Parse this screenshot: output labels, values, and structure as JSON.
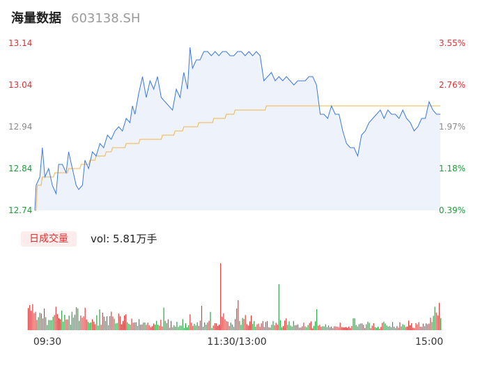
{
  "header": {
    "name": "海量数据",
    "code": "603138.SH"
  },
  "volume_panel": {
    "badge": "日成交量",
    "vol_text": "vol: 5.81万手"
  },
  "colors": {
    "up": "#e03131",
    "down": "#1f9d3a",
    "price_line": "#3b7ae0",
    "avg_line": "#f0b44a",
    "area_fill": "#eef2fb"
  },
  "chart_data": [
    {
      "type": "line",
      "y_left_ticks": [
        "13.14",
        "13.04",
        "12.94",
        "12.84",
        "12.74"
      ],
      "y_right_ticks": [
        "3.55%",
        "2.76%",
        "1.97%",
        "1.18%",
        "0.39%"
      ],
      "x_ticks": [
        "09:30",
        "11:30/13:00",
        "15:00"
      ],
      "ylim": [
        12.74,
        13.14
      ],
      "price_keypoints": [
        [
          0,
          12.74
        ],
        [
          1,
          12.8
        ],
        [
          4,
          12.82
        ],
        [
          6,
          12.89
        ],
        [
          8,
          12.82
        ],
        [
          11,
          12.84
        ],
        [
          14,
          12.8
        ],
        [
          17,
          12.78
        ],
        [
          19,
          12.85
        ],
        [
          22,
          12.85
        ],
        [
          25,
          12.83
        ],
        [
          27,
          12.88
        ],
        [
          30,
          12.84
        ],
        [
          33,
          12.8
        ],
        [
          35,
          12.79
        ],
        [
          38,
          12.8
        ],
        [
          40,
          12.86
        ],
        [
          43,
          12.84
        ],
        [
          46,
          12.88
        ],
        [
          49,
          12.87
        ],
        [
          52,
          12.9
        ],
        [
          55,
          12.89
        ],
        [
          58,
          12.92
        ],
        [
          61,
          12.91
        ],
        [
          64,
          12.93
        ],
        [
          67,
          12.94
        ],
        [
          70,
          12.93
        ],
        [
          73,
          12.96
        ],
        [
          76,
          12.95
        ],
        [
          78,
          12.99
        ],
        [
          80,
          12.97
        ],
        [
          83,
          13.02
        ],
        [
          86,
          13.06
        ],
        [
          89,
          13.01
        ],
        [
          92,
          13.05
        ],
        [
          95,
          13.03
        ],
        [
          98,
          13.06
        ],
        [
          101,
          13.01
        ],
        [
          104,
          13.0
        ],
        [
          107,
          12.99
        ],
        [
          110,
          12.98
        ],
        [
          113,
          13.03
        ],
        [
          116,
          13.01
        ],
        [
          119,
          13.07
        ],
        [
          122,
          13.03
        ],
        [
          124,
          13.13
        ],
        [
          126,
          13.08
        ],
        [
          129,
          13.1
        ],
        [
          132,
          13.1
        ],
        [
          135,
          13.12
        ],
        [
          138,
          13.12
        ],
        [
          141,
          13.11
        ],
        [
          144,
          13.12
        ],
        [
          147,
          13.11
        ],
        [
          150,
          13.12
        ],
        [
          153,
          13.12
        ],
        [
          156,
          13.11
        ],
        [
          159,
          13.11
        ],
        [
          162,
          13.12
        ],
        [
          165,
          13.12
        ],
        [
          168,
          13.11
        ],
        [
          171,
          13.12
        ],
        [
          174,
          13.11
        ],
        [
          177,
          13.12
        ],
        [
          180,
          13.11
        ],
        [
          183,
          13.05
        ],
        [
          186,
          13.06
        ],
        [
          189,
          13.07
        ],
        [
          192,
          13.05
        ],
        [
          195,
          13.06
        ],
        [
          198,
          13.05
        ],
        [
          201,
          13.06
        ],
        [
          204,
          13.05
        ],
        [
          207,
          13.04
        ],
        [
          210,
          13.05
        ],
        [
          213,
          13.05
        ],
        [
          216,
          13.05
        ],
        [
          219,
          13.06
        ],
        [
          222,
          13.06
        ],
        [
          225,
          13.04
        ],
        [
          228,
          12.97
        ],
        [
          231,
          12.97
        ],
        [
          234,
          12.96
        ],
        [
          237,
          12.99
        ],
        [
          240,
          12.97
        ],
        [
          243,
          12.97
        ],
        [
          246,
          12.93
        ],
        [
          249,
          12.9
        ],
        [
          252,
          12.89
        ],
        [
          255,
          12.89
        ],
        [
          258,
          12.87
        ],
        [
          261,
          12.92
        ],
        [
          264,
          12.93
        ],
        [
          267,
          12.95
        ],
        [
          270,
          12.96
        ],
        [
          273,
          12.97
        ],
        [
          276,
          12.98
        ],
        [
          279,
          12.96
        ],
        [
          282,
          12.98
        ],
        [
          285,
          12.97
        ],
        [
          288,
          12.97
        ],
        [
          291,
          12.96
        ],
        [
          294,
          12.98
        ],
        [
          297,
          12.96
        ],
        [
          300,
          12.95
        ],
        [
          303,
          12.93
        ],
        [
          306,
          12.94
        ],
        [
          309,
          12.96
        ],
        [
          312,
          12.96
        ],
        [
          315,
          13.0
        ],
        [
          318,
          12.98
        ],
        [
          321,
          12.97
        ],
        [
          324,
          12.97
        ]
      ],
      "avg_keypoints": [
        [
          0,
          12.74
        ],
        [
          2,
          12.8
        ],
        [
          6,
          12.82
        ],
        [
          16,
          12.83
        ],
        [
          27,
          12.84
        ],
        [
          37,
          12.85
        ],
        [
          44,
          12.86
        ],
        [
          49,
          12.87
        ],
        [
          57,
          12.88
        ],
        [
          62,
          12.89
        ],
        [
          73,
          12.9
        ],
        [
          84,
          12.91
        ],
        [
          102,
          12.92
        ],
        [
          112,
          12.93
        ],
        [
          119,
          12.94
        ],
        [
          131,
          12.95
        ],
        [
          143,
          12.96
        ],
        [
          153,
          12.97
        ],
        [
          160,
          12.98
        ],
        [
          175,
          12.98
        ],
        [
          185,
          12.99
        ],
        [
          230,
          12.99
        ],
        [
          324,
          12.99
        ]
      ],
      "volume": [
        1320,
        1500,
        1160,
        1560,
        1020,
        1100,
        610,
        780,
        1040,
        990,
        700,
        1290,
        780,
        310,
        610,
        600,
        600,
        800,
        910,
        1400,
        960,
        720,
        650,
        1170,
        510,
        920,
        640,
        640,
        870,
        330,
        1100,
        760,
        930,
        1370,
        1300,
        560,
        870,
        740,
        830,
        1340,
        640,
        490,
        430,
        470,
        650,
        510,
        360,
        890,
        270,
        1240,
        320,
        1050,
        810,
        560,
        830,
        300,
        840,
        1110,
        820,
        680,
        400,
        430,
        990,
        830,
        360,
        540,
        880,
        950,
        470,
        380,
        330,
        690,
        450,
        460,
        470,
        250,
        660,
        330,
        340,
        450,
        460,
        320,
        450,
        290,
        180,
        240,
        400,
        330,
        560,
        330,
        270,
        620,
        220,
        1350,
        560,
        420,
        650,
        150,
        550,
        180,
        300,
        210,
        500,
        190,
        280,
        270,
        660,
        130,
        410,
        170,
        300,
        950,
        450,
        260,
        380,
        280,
        470,
        260,
        570,
        1460,
        200,
        460,
        330,
        450,
        560,
        1090,
        130,
        280,
        420,
        410,
        250,
        330,
        4000,
        800,
        1010,
        650,
        540,
        500,
        250,
        450,
        340,
        200,
        660,
        1300,
        1790,
        550,
        320,
        730,
        670,
        900,
        360,
        270,
        530,
        880,
        370,
        540,
        210,
        350,
        390,
        200,
        410,
        540,
        190,
        490,
        550,
        180,
        160,
        320,
        540,
        290,
        440,
        330,
        2750,
        600,
        180,
        250,
        580,
        710,
        320,
        530,
        270,
        220,
        550,
        290,
        310,
        340,
        150,
        160,
        230,
        450,
        230,
        180,
        310,
        430,
        530,
        110,
        260,
        530,
        1250,
        270,
        320,
        200,
        240,
        220,
        350,
        180,
        280,
        170,
        220,
        120,
        230,
        230,
        210,
        180,
        450,
        190,
        170,
        170,
        190,
        140,
        220,
        130,
        250,
        710,
        710,
        310,
        220,
        360,
        400,
        410,
        320,
        130,
        350,
        510,
        440,
        120,
        270,
        420,
        180,
        140,
        210,
        90,
        200,
        440,
        510,
        400,
        280,
        210,
        240,
        180,
        490,
        210,
        130,
        240,
        150,
        470,
        230,
        360,
        310,
        190,
        220,
        570,
        290,
        420,
        140,
        130,
        420,
        350,
        480,
        210,
        200,
        390,
        240,
        410,
        360,
        390,
        740,
        490,
        860,
        1400,
        1060,
        880,
        1630,
        720
      ]
    }
  ]
}
